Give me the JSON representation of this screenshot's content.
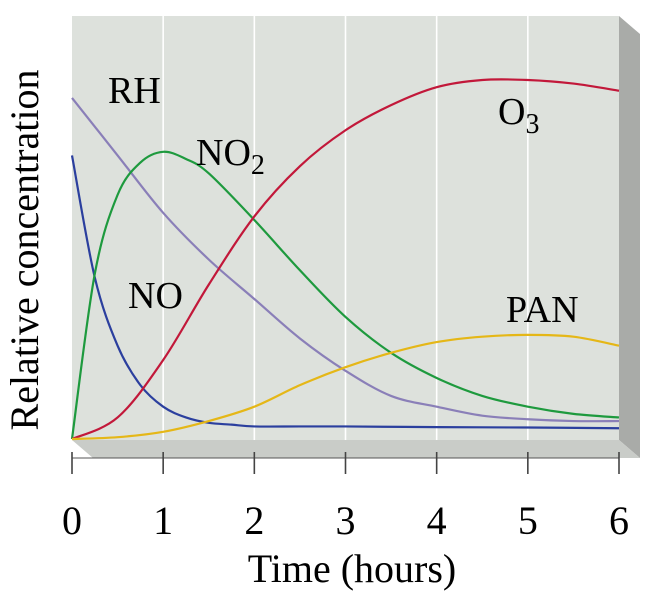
{
  "chart_data": {
    "type": "line",
    "xlabel": "Time (hours)",
    "ylabel": "Relative concentration",
    "xlim": [
      0,
      6
    ],
    "ylim": [
      0,
      1
    ],
    "x_ticks": [
      "0",
      "1",
      "2",
      "3",
      "4",
      "5",
      "6"
    ],
    "grid": "vertical",
    "colors": {
      "plot_bg": "#dde1dc",
      "side_face": "#a9aba8",
      "bottom_face": "#c9ccc8",
      "grid": "#ffffff"
    },
    "series": [
      {
        "name": "RH",
        "label_main": "RH",
        "label_sub": "",
        "color": "#8a7fb8",
        "x": [
          0,
          0.5,
          1,
          1.5,
          2,
          2.5,
          3,
          3.5,
          4,
          4.5,
          5,
          5.5,
          6
        ],
        "y": [
          0.95,
          0.79,
          0.63,
          0.5,
          0.39,
          0.28,
          0.19,
          0.12,
          0.09,
          0.065,
          0.055,
          0.05,
          0.05
        ]
      },
      {
        "name": "NO",
        "label_main": "NO",
        "label_sub": "",
        "color": "#2b3f9e",
        "x": [
          0,
          0.25,
          0.5,
          0.75,
          1,
          1.25,
          1.5,
          1.75,
          2,
          2.5,
          3,
          4,
          5,
          6
        ],
        "y": [
          0.79,
          0.45,
          0.26,
          0.15,
          0.09,
          0.06,
          0.045,
          0.04,
          0.035,
          0.035,
          0.035,
          0.033,
          0.032,
          0.03
        ]
      },
      {
        "name": "NO₂",
        "label_main": "NO",
        "label_sub": "2",
        "color": "#1e9a3e",
        "x": [
          0,
          0.25,
          0.5,
          0.75,
          1,
          1.25,
          1.5,
          2,
          2.5,
          3,
          3.5,
          4,
          4.5,
          5,
          5.5,
          6
        ],
        "y": [
          0,
          0.46,
          0.68,
          0.77,
          0.8,
          0.78,
          0.74,
          0.61,
          0.47,
          0.34,
          0.24,
          0.17,
          0.12,
          0.09,
          0.07,
          0.06
        ]
      },
      {
        "name": "O₃",
        "label_main": "O",
        "label_sub": "3",
        "color": "#c2183a",
        "x": [
          0,
          0.5,
          1,
          1.5,
          2,
          2.5,
          3,
          3.5,
          4,
          4.5,
          5,
          5.5,
          6
        ],
        "y": [
          0,
          0.06,
          0.22,
          0.43,
          0.62,
          0.76,
          0.86,
          0.93,
          0.98,
          1.0,
          1.0,
          0.99,
          0.97
        ]
      },
      {
        "name": "PAN",
        "label_main": "PAN",
        "label_sub": "",
        "color": "#e5b717",
        "x": [
          0,
          0.5,
          1,
          1.5,
          2,
          2.5,
          3,
          3.5,
          4,
          4.5,
          5,
          5.5,
          6
        ],
        "y": [
          0,
          0.005,
          0.02,
          0.05,
          0.09,
          0.15,
          0.2,
          0.24,
          0.27,
          0.285,
          0.29,
          0.285,
          0.26
        ]
      }
    ]
  }
}
